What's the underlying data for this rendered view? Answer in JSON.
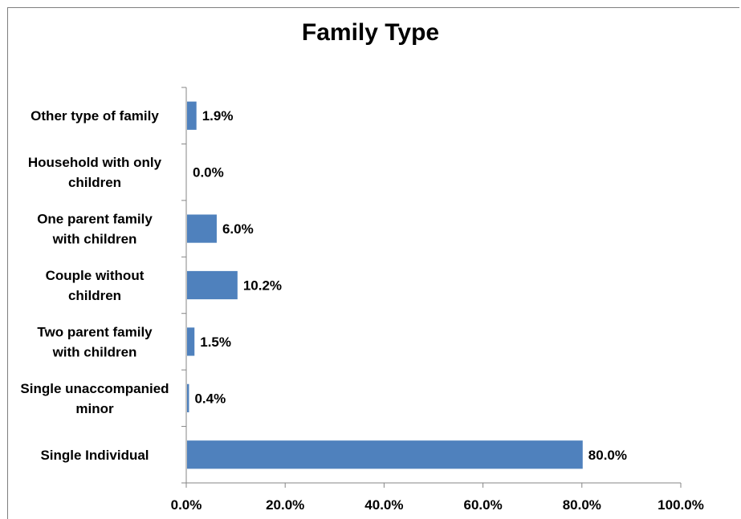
{
  "chart_data": {
    "type": "bar",
    "orientation": "horizontal",
    "title": "Family Type",
    "categories": [
      "Other type of family",
      "Household with only children",
      "One parent family with children",
      "Couple without children",
      "Two parent family with children",
      "Single unaccompanied minor",
      "Single Individual"
    ],
    "category_lines": [
      [
        "Other type of family"
      ],
      [
        "Household with only",
        "children"
      ],
      [
        "One parent family",
        "with children"
      ],
      [
        "Couple without",
        "children"
      ],
      [
        "Two parent family",
        "with children"
      ],
      [
        "Single unaccompanied",
        "minor"
      ],
      [
        "Single Individual"
      ]
    ],
    "values": [
      1.9,
      0.0,
      6.0,
      10.2,
      1.5,
      0.4,
      80.0
    ],
    "data_labels": [
      "1.9%",
      "0.0%",
      "6.0%",
      "10.2%",
      "1.5%",
      "0.4%",
      "80.0%"
    ],
    "xlim": [
      0,
      100
    ],
    "x_ticks": [
      0,
      20,
      40,
      60,
      80,
      100
    ],
    "x_tick_labels": [
      "0.0%",
      "20.0%",
      "40.0%",
      "60.0%",
      "80.0%",
      "100.0%"
    ],
    "grid": false,
    "legend": "none",
    "bar_color": "#4f81bd",
    "xlabel": "",
    "ylabel": ""
  }
}
